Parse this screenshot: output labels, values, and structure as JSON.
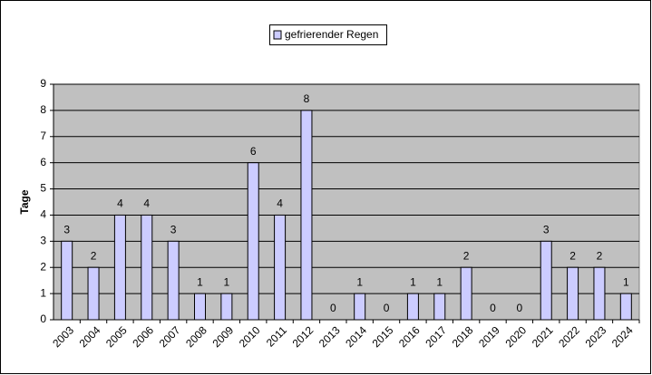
{
  "chart_data": {
    "type": "bar",
    "y_label": "Tage",
    "categories": [
      "2003",
      "2004",
      "2005",
      "2006",
      "2007",
      "2008",
      "2009",
      "2010",
      "2011",
      "2012",
      "2013",
      "2014",
      "2015",
      "2016",
      "2017",
      "2018",
      "2019",
      "2020",
      "2021",
      "2022",
      "2023",
      "2024"
    ],
    "series": [
      {
        "name": "gefrierender Regen",
        "color": "#ccccff",
        "values": [
          3,
          2,
          4,
          4,
          3,
          1,
          1,
          6,
          4,
          8,
          0,
          1,
          0,
          1,
          1,
          2,
          0,
          0,
          3,
          2,
          2,
          1
        ]
      }
    ],
    "ylim": [
      0,
      9
    ],
    "yticks": [
      0,
      1,
      2,
      3,
      4,
      5,
      6,
      7,
      8,
      9
    ],
    "grid": true
  }
}
